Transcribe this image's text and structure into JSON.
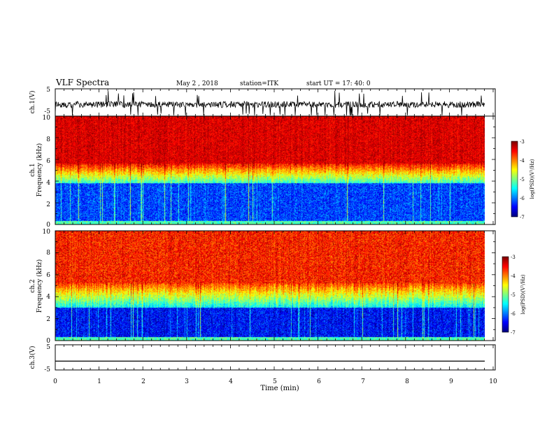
{
  "header": {
    "title": "VLF Spectra",
    "date": "May 2   , 2018",
    "station": "station=ITK",
    "start": "start UT =   17: 40: 0"
  },
  "colors": {
    "waveform": "#000000",
    "background": "#ffffff"
  },
  "chart_data": [
    {
      "type": "line",
      "panel": "ch1-waveform",
      "ylabel": "ch.1(V)",
      "ylim": [
        -5,
        5
      ],
      "yticks": [
        "5",
        "-5"
      ],
      "xlim": [
        0,
        10
      ],
      "description_series": "dense noisy voltage trace around 0 V with frequent negative spikes to about -5 V"
    },
    {
      "type": "heatmap",
      "panel": "ch1-spectrogram",
      "ylabel_top": "ch.1",
      "ylabel": "Frequency (kHz)",
      "ylim": [
        0,
        10
      ],
      "yticks": [
        "0",
        "2",
        "4",
        "6",
        "8",
        "10"
      ],
      "xlim": [
        0,
        10
      ],
      "colorbar": {
        "label": "log(PSD)(V²/Hz)",
        "range": [
          -7,
          -3
        ],
        "ticks": [
          "-3",
          "-4",
          "-5",
          "-6",
          "-7"
        ]
      }
    },
    {
      "type": "heatmap",
      "panel": "ch2-spectrogram",
      "ylabel_top": "ch.2",
      "ylabel": "Frequency (kHz)",
      "ylim": [
        0,
        10
      ],
      "yticks": [
        "0",
        "2",
        "4",
        "6",
        "8",
        "10"
      ],
      "xlim": [
        0,
        10
      ],
      "colorbar": {
        "label": "log(PSD)(V²/Hz)",
        "range": [
          -7,
          -3
        ],
        "ticks": [
          "-3",
          "-4",
          "-5",
          "-6",
          "-7"
        ]
      }
    },
    {
      "type": "line",
      "panel": "ch3-waveform",
      "ylabel": "ch.3(V)",
      "ylim": [
        -5,
        5
      ],
      "yticks": [
        "5",
        "-5"
      ],
      "xlim": [
        0,
        10
      ],
      "constant_value": -1.5
    }
  ],
  "xaxis": {
    "label": "Time (min)",
    "ticks": [
      "0",
      "1",
      "2",
      "3",
      "4",
      "5",
      "6",
      "7",
      "8",
      "9",
      "10"
    ]
  }
}
